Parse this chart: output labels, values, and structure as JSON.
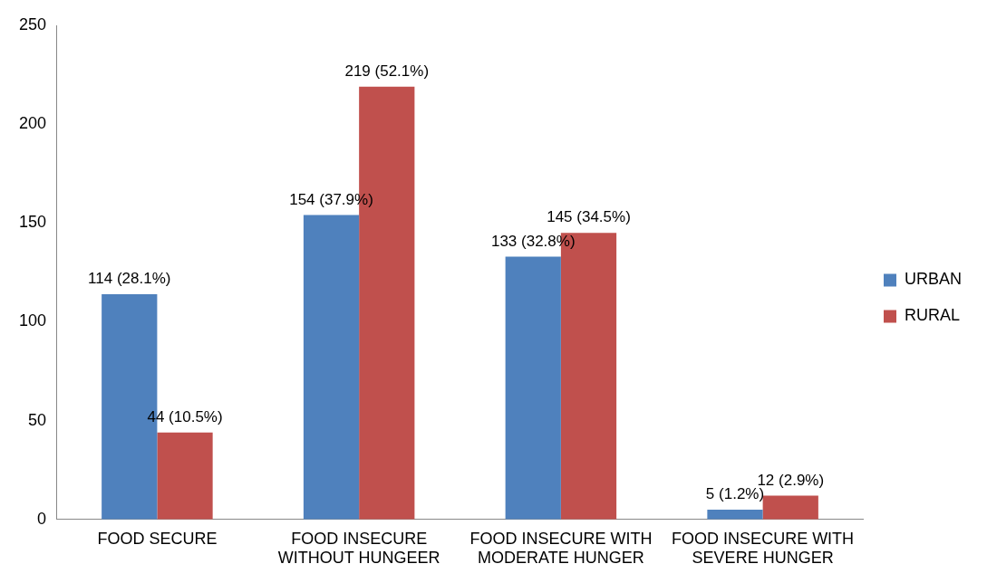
{
  "chart_data": {
    "type": "bar",
    "categories": [
      "FOOD SECURE",
      "FOOD INSECURE WITHOUT HUNGEER",
      "FOOD INSECURE WITH MODERATE HUNGER",
      "FOOD INSECURE WITH SEVERE HUNGER"
    ],
    "series": [
      {
        "name": "URBAN",
        "color": "#4f81bd",
        "values": [
          114,
          154,
          133,
          5
        ],
        "value_labels": [
          "114 (28.1%)",
          "154 (37.9%)",
          "133 (32.8%)",
          "5 (1.2%)"
        ]
      },
      {
        "name": "RURAL",
        "color": "#c0504d",
        "values": [
          44,
          219,
          145,
          12
        ],
        "value_labels": [
          "44 (10.5%)",
          "219 (52.1%)",
          "145 (34.5%)",
          "12 (2.9%)"
        ]
      }
    ],
    "ylim": [
      0,
      250
    ],
    "yticks": [
      0,
      50,
      100,
      150,
      200,
      250
    ],
    "grid": false,
    "legend": "right"
  }
}
